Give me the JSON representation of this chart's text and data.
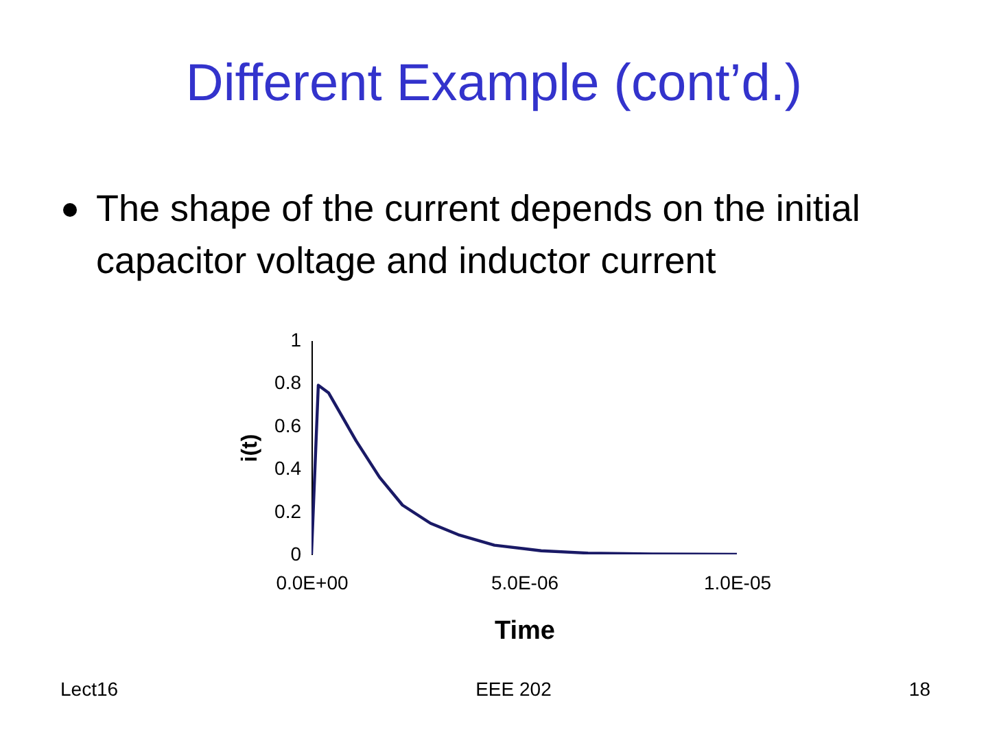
{
  "chart_data": {
    "type": "line",
    "title": "Different Example (cont’d.)",
    "subtitle": "The shape of the current depends on the initial capacitor voltage and inductor current",
    "xlabel": "Time",
    "ylabel": "i(t)",
    "annotations": [
      "Lect16",
      "EEE 202",
      "18"
    ],
    "x": [
      0,
      1.6e-07,
      4e-07,
      1.05e-06,
      1.6e-06,
      2.14e-06,
      2.8e-06,
      3.45e-06,
      4.3e-06,
      5.4e-06,
      6.5e-06,
      8e-06,
      1e-05
    ],
    "series": [
      {
        "color": "#1a1a66",
        "values": [
          0,
          0.79,
          0.755,
          0.53,
          0.36,
          0.23,
          0.145,
          0.092,
          0.043,
          0.017,
          0.006,
          0.002,
          0
        ]
      }
    ],
    "xlim": [
      0,
      1e-05
    ],
    "xticks": [
      {
        "value": 0,
        "label": "0.0E+00"
      },
      {
        "value": 5e-06,
        "label": "5.0E-06"
      },
      {
        "value": 1e-05,
        "label": "1.0E-05"
      }
    ],
    "ylim": [
      0,
      1
    ],
    "yticks": [
      0,
      0.2,
      0.4,
      0.6,
      0.8,
      1
    ],
    "grid": false,
    "marker": "none",
    "line_style": "solid"
  }
}
